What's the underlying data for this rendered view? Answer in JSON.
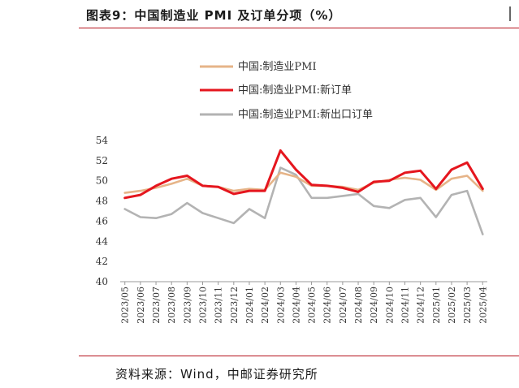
{
  "header": {
    "title": "图表9：中国制造业 PMI 及订单分项（%）"
  },
  "footer": {
    "source": "资料来源：Wind，中邮证券研究所"
  },
  "chart_data": {
    "type": "line",
    "x": [
      "2023/05",
      "2023/06",
      "2023/07",
      "2023/08",
      "2023/09",
      "2023/10",
      "2023/11",
      "2023/12",
      "2024/01",
      "2024/02",
      "2024/03",
      "2024/04",
      "2024/05",
      "2024/06",
      "2024/07",
      "2024/08",
      "2024/09",
      "2024/10",
      "2024/11",
      "2024/12",
      "2025/01",
      "2025/02",
      "2025/03",
      "2025/04"
    ],
    "series": [
      {
        "name": "中国:制造业PMI",
        "color": "#e6b488",
        "values": [
          48.8,
          49.0,
          49.3,
          49.7,
          50.2,
          49.5,
          49.4,
          49.0,
          49.2,
          49.1,
          50.8,
          50.4,
          49.5,
          49.5,
          49.4,
          49.1,
          49.8,
          50.1,
          50.3,
          50.1,
          49.1,
          50.2,
          50.5,
          49.0
        ]
      },
      {
        "name": "中国:制造业PMI:新订单",
        "color": "#e5161e",
        "values": [
          48.3,
          48.6,
          49.5,
          50.2,
          50.5,
          49.5,
          49.4,
          48.7,
          49.0,
          49.0,
          53.0,
          51.1,
          49.6,
          49.5,
          49.3,
          48.9,
          49.9,
          50.0,
          50.8,
          51.0,
          49.2,
          51.1,
          51.8,
          49.2
        ]
      },
      {
        "name": "中国:制造业PMI:新出口订单",
        "color": "#b3b3b3",
        "values": [
          47.2,
          46.4,
          46.3,
          46.7,
          47.8,
          46.8,
          46.3,
          45.8,
          47.2,
          46.3,
          51.3,
          50.6,
          48.3,
          48.3,
          48.5,
          48.7,
          47.5,
          47.3,
          48.1,
          48.3,
          46.4,
          48.6,
          49.0,
          44.7
        ]
      }
    ],
    "ylim": [
      40,
      54
    ],
    "yticks": [
      "54",
      "52",
      "50",
      "48",
      "46",
      "44",
      "42",
      "40"
    ],
    "xlabel": "",
    "ylabel": "",
    "grid": false,
    "legend_position": "top"
  }
}
